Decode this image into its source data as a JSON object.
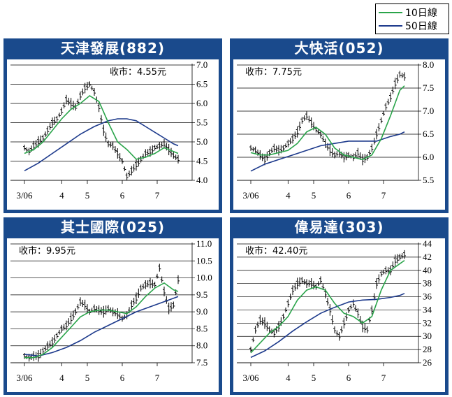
{
  "legend": {
    "items": [
      {
        "label": "10日線",
        "color": "#2aa44a"
      },
      {
        "label": "50日線",
        "color": "#1d3a8c"
      }
    ]
  },
  "colors": {
    "panel": "#1a4a8c",
    "ma10": "#2aa44a",
    "ma50": "#1d3a8c",
    "price": "#000000"
  },
  "chart_data": [
    {
      "type": "line",
      "title": "天津發展(882)",
      "close_label": "收市：4.55元",
      "ylim": [
        4.0,
        7.0
      ],
      "yticks": [
        "4.0",
        "4.5",
        "5.0",
        "5.5",
        "6.0",
        "6.5",
        "7.0"
      ],
      "xticks": [
        {
          "label": "3/06",
          "x": 0
        },
        {
          "label": "4",
          "x": 16
        },
        {
          "label": "5",
          "x": 27
        },
        {
          "label": "6",
          "x": 42
        },
        {
          "label": "7",
          "x": 57
        }
      ],
      "x_range": [
        0,
        66
      ],
      "series": [
        {
          "name": "price",
          "x": [
            0,
            2,
            4,
            6,
            8,
            10,
            12,
            14,
            16,
            18,
            20,
            22,
            24,
            26,
            28,
            30,
            32,
            34,
            36,
            38,
            40,
            42,
            44,
            46,
            48,
            50,
            52,
            54,
            56,
            58,
            60,
            62,
            64,
            66
          ],
          "values": [
            4.85,
            4.75,
            4.9,
            5.0,
            5.1,
            5.3,
            5.5,
            5.6,
            5.8,
            6.1,
            6.0,
            5.9,
            6.2,
            6.4,
            6.5,
            6.3,
            5.9,
            5.3,
            4.95,
            4.9,
            4.7,
            4.5,
            4.1,
            4.25,
            4.4,
            4.55,
            4.7,
            4.75,
            4.85,
            4.9,
            4.95,
            4.8,
            4.65,
            4.55
          ]
        },
        {
          "name": "10日線",
          "x": [
            0,
            4,
            8,
            12,
            16,
            20,
            24,
            28,
            32,
            36,
            40,
            44,
            48,
            52,
            56,
            60,
            64,
            66
          ],
          "values": [
            4.7,
            4.8,
            5.0,
            5.3,
            5.6,
            5.85,
            6.0,
            6.2,
            6.05,
            5.5,
            5.0,
            4.8,
            4.55,
            4.6,
            4.7,
            4.85,
            4.75,
            4.7
          ]
        },
        {
          "name": "50日線",
          "x": [
            0,
            6,
            12,
            18,
            24,
            30,
            36,
            40,
            44,
            48,
            52,
            56,
            60,
            64,
            66
          ],
          "values": [
            4.25,
            4.45,
            4.7,
            4.95,
            5.2,
            5.4,
            5.55,
            5.6,
            5.6,
            5.55,
            5.4,
            5.25,
            5.1,
            4.95,
            4.9
          ]
        }
      ]
    },
    {
      "type": "line",
      "title": "大快活(052)",
      "close_label": "收市：7.75元",
      "ylim": [
        5.5,
        8.0
      ],
      "yticks": [
        "5.5",
        "6.0",
        "6.5",
        "7.0",
        "7.5",
        "8.0"
      ],
      "xticks": [
        {
          "label": "3/06",
          "x": 0
        },
        {
          "label": "4",
          "x": 16
        },
        {
          "label": "5",
          "x": 27
        },
        {
          "label": "6",
          "x": 42
        },
        {
          "label": "7",
          "x": 57
        }
      ],
      "x_range": [
        0,
        66
      ],
      "series": [
        {
          "name": "price",
          "x": [
            0,
            2,
            4,
            6,
            8,
            10,
            12,
            14,
            16,
            18,
            20,
            22,
            24,
            26,
            28,
            30,
            32,
            34,
            36,
            38,
            40,
            42,
            44,
            46,
            48,
            50,
            52,
            54,
            56,
            58,
            60,
            62,
            64,
            66
          ],
          "values": [
            6.2,
            6.15,
            6.05,
            5.95,
            6.1,
            6.2,
            6.15,
            6.2,
            6.3,
            6.4,
            6.55,
            6.8,
            6.9,
            6.75,
            6.6,
            6.5,
            6.3,
            6.15,
            6.05,
            6.1,
            6.0,
            6.05,
            6.0,
            6.1,
            5.95,
            6.0,
            6.2,
            6.5,
            6.8,
            7.1,
            7.3,
            7.6,
            7.8,
            7.75
          ]
        },
        {
          "name": "10日線",
          "x": [
            0,
            4,
            8,
            12,
            16,
            20,
            24,
            28,
            32,
            36,
            40,
            44,
            48,
            52,
            56,
            60,
            64,
            66
          ],
          "values": [
            6.1,
            6.05,
            6.05,
            6.1,
            6.15,
            6.3,
            6.55,
            6.65,
            6.5,
            6.2,
            6.05,
            6.0,
            5.95,
            6.05,
            6.4,
            6.9,
            7.45,
            7.55
          ]
        },
        {
          "name": "50日線",
          "x": [
            0,
            6,
            12,
            18,
            24,
            30,
            36,
            42,
            48,
            54,
            60,
            64,
            66
          ],
          "values": [
            5.7,
            5.85,
            5.95,
            6.05,
            6.15,
            6.25,
            6.3,
            6.35,
            6.35,
            6.35,
            6.45,
            6.5,
            6.55
          ]
        }
      ]
    },
    {
      "type": "line",
      "title": "其士國際(025)",
      "close_label": "收市：9.95元",
      "ylim": [
        7.5,
        11.0
      ],
      "yticks": [
        "7.5",
        "8.0",
        "8.5",
        "9.0",
        "9.5",
        "10.0",
        "10.5",
        "11.0"
      ],
      "xticks": [
        {
          "label": "3/06",
          "x": 0
        },
        {
          "label": "4",
          "x": 16
        },
        {
          "label": "5",
          "x": 27
        },
        {
          "label": "6",
          "x": 42
        },
        {
          "label": "7",
          "x": 57
        }
      ],
      "x_range": [
        0,
        66
      ],
      "series": [
        {
          "name": "price",
          "x": [
            0,
            2,
            4,
            6,
            8,
            10,
            12,
            14,
            16,
            18,
            20,
            22,
            24,
            26,
            28,
            30,
            32,
            34,
            36,
            38,
            40,
            42,
            44,
            46,
            48,
            50,
            52,
            54,
            56,
            58,
            60,
            62,
            64,
            66
          ],
          "values": [
            7.7,
            7.65,
            7.7,
            7.7,
            7.85,
            8.0,
            8.1,
            8.3,
            8.5,
            8.6,
            8.8,
            9.0,
            9.3,
            9.2,
            9.0,
            9.1,
            9.05,
            9.0,
            9.1,
            9.0,
            8.95,
            8.8,
            8.9,
            9.2,
            9.4,
            9.7,
            9.8,
            9.85,
            9.8,
            10.3,
            9.6,
            9.1,
            9.2,
            9.95
          ]
        },
        {
          "name": "10日線",
          "x": [
            0,
            4,
            8,
            12,
            16,
            20,
            24,
            28,
            32,
            36,
            40,
            44,
            48,
            52,
            56,
            60,
            64,
            66
          ],
          "values": [
            7.65,
            7.65,
            7.75,
            7.95,
            8.25,
            8.55,
            8.85,
            9.0,
            9.05,
            9.05,
            9.0,
            8.95,
            9.15,
            9.45,
            9.7,
            9.85,
            9.65,
            9.6
          ]
        },
        {
          "name": "50日線",
          "x": [
            0,
            6,
            12,
            18,
            24,
            30,
            36,
            42,
            48,
            54,
            60,
            64,
            66
          ],
          "values": [
            7.75,
            7.7,
            7.8,
            7.95,
            8.15,
            8.4,
            8.6,
            8.8,
            9.0,
            9.15,
            9.3,
            9.4,
            9.45
          ]
        }
      ]
    },
    {
      "type": "line",
      "title": "偉易達(303)",
      "close_label": "收市：42.40元",
      "ylim": [
        26,
        44
      ],
      "yticks": [
        "26",
        "28",
        "30",
        "32",
        "34",
        "36",
        "38",
        "40",
        "42",
        "44"
      ],
      "xticks": [
        {
          "label": "3/06",
          "x": 0
        },
        {
          "label": "4",
          "x": 16
        },
        {
          "label": "5",
          "x": 27
        },
        {
          "label": "6",
          "x": 42
        },
        {
          "label": "7",
          "x": 57
        }
      ],
      "x_range": [
        0,
        66
      ],
      "series": [
        {
          "name": "price",
          "x": [
            0,
            2,
            4,
            6,
            8,
            10,
            12,
            14,
            16,
            18,
            20,
            22,
            24,
            26,
            28,
            30,
            32,
            34,
            36,
            38,
            40,
            42,
            44,
            46,
            48,
            50,
            52,
            54,
            56,
            58,
            60,
            62,
            64,
            66
          ],
          "values": [
            28,
            31,
            32.5,
            32,
            31,
            30.5,
            31.5,
            33,
            35,
            37,
            38,
            38.5,
            38,
            38,
            37.5,
            38.5,
            36.5,
            34,
            31,
            30,
            32,
            34,
            35,
            33.5,
            31.5,
            31,
            34,
            38,
            39.5,
            40,
            40,
            41.5,
            42,
            42.4
          ]
        },
        {
          "name": "10日線",
          "x": [
            0,
            4,
            8,
            12,
            16,
            20,
            24,
            28,
            32,
            36,
            40,
            44,
            48,
            52,
            56,
            60,
            64,
            66
          ],
          "values": [
            27.5,
            29,
            30.5,
            31.5,
            33,
            35.5,
            37,
            37.5,
            37,
            35,
            33.5,
            33,
            32,
            33,
            37,
            40,
            41,
            41.5
          ]
        },
        {
          "name": "50日線",
          "x": [
            0,
            6,
            12,
            18,
            24,
            30,
            36,
            42,
            48,
            54,
            60,
            64,
            66
          ],
          "values": [
            26.8,
            27.8,
            29.2,
            30.8,
            32.2,
            33.5,
            34.4,
            35.2,
            35.5,
            35.6,
            35.9,
            36.2,
            36.5
          ]
        }
      ]
    }
  ]
}
